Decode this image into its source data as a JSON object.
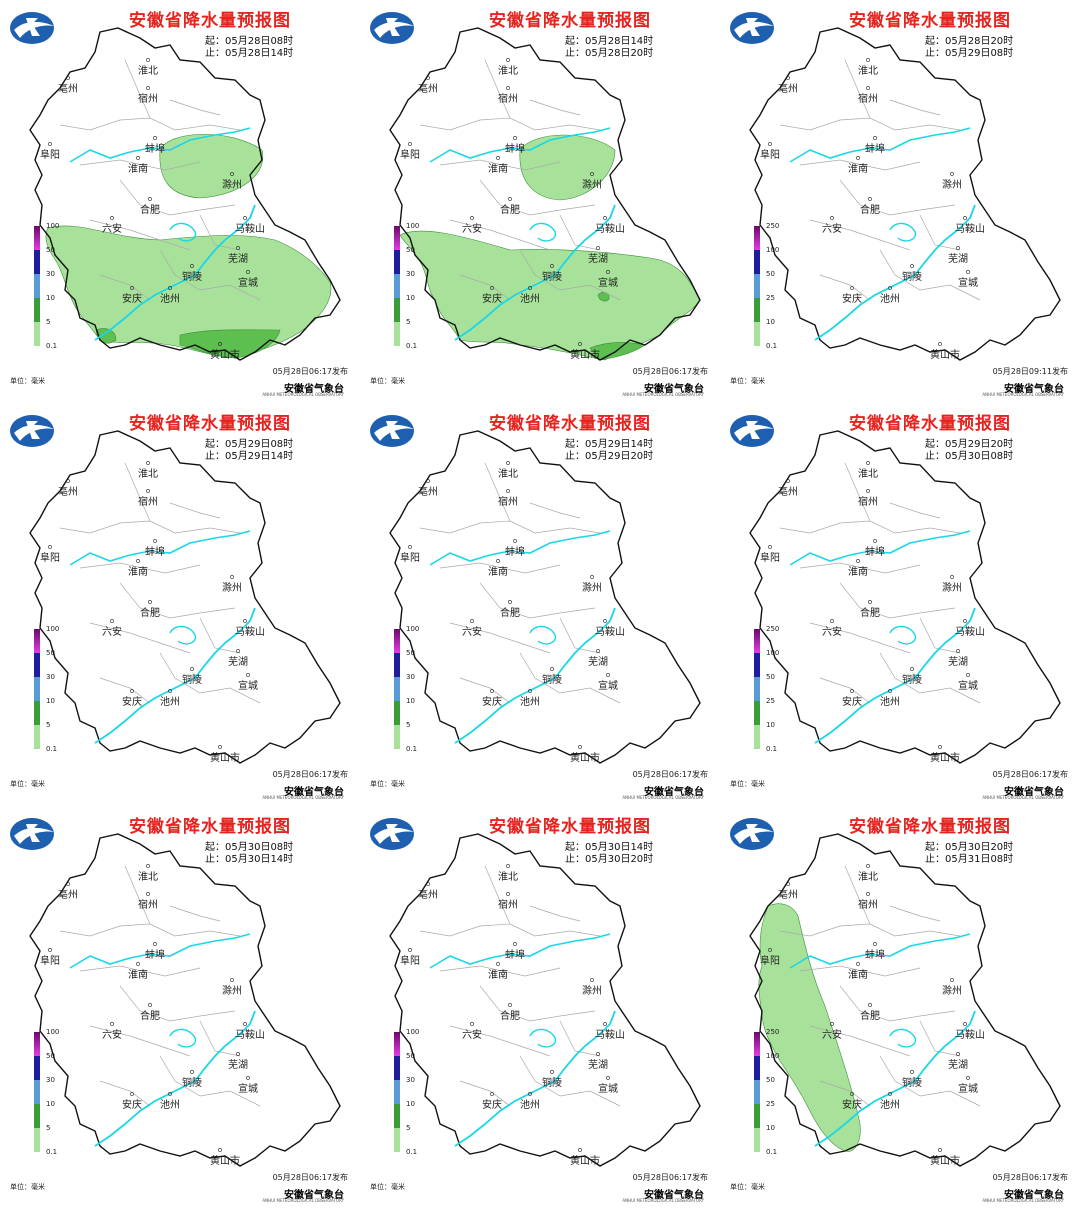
{
  "agency": "安徽省气象台",
  "agency_en": "ANHUI METEOROLOGICAL OBSERVATORY",
  "unit": "单位：毫米",
  "colors": {
    "title": "#e8231f",
    "river": "#19d7e8",
    "rain_light": "#a8e29a",
    "rain_mid": "#5cbf4f",
    "rain_heavy": "#2e8b2e"
  },
  "cities": [
    "淮北",
    "亳州",
    "宿州",
    "阜阳",
    "蚌埠",
    "淮南",
    "滁州",
    "合肥",
    "六安",
    "马鞍山",
    "芜湖",
    "铜陵",
    "宣城",
    "安庆",
    "池州",
    "黄山市"
  ],
  "panels": [
    {
      "title": "安徽省降水量预报图",
      "start": "起：05月28日08时",
      "end": "止：05月28日14时",
      "published": "05月28日06:17发布",
      "legend": [
        "100",
        "50",
        "30",
        "10",
        "5",
        "0.1"
      ],
      "rain": "a"
    },
    {
      "title": "安徽省降水量预报图",
      "start": "起：05月28日14时",
      "end": "止：05月28日20时",
      "published": "05月28日06:17发布",
      "legend": [
        "100",
        "50",
        "30",
        "10",
        "5",
        "0.1"
      ],
      "rain": "b"
    },
    {
      "title": "安徽省降水量预报图",
      "start": "起：05月28日20时",
      "end": "止：05月29日08时",
      "published": "05月28日09:11发布",
      "legend": [
        "250",
        "100",
        "50",
        "25",
        "10",
        "0.1"
      ],
      "rain": "none"
    },
    {
      "title": "安徽省降水量预报图",
      "start": "起：05月29日08时",
      "end": "止：05月29日14时",
      "published": "05月28日06:17发布",
      "legend": [
        "100",
        "50",
        "30",
        "10",
        "5",
        "0.1"
      ],
      "rain": "none"
    },
    {
      "title": "安徽省降水量预报图",
      "start": "起：05月29日14时",
      "end": "止：05月29日20时",
      "published": "05月28日06:17发布",
      "legend": [
        "100",
        "50",
        "30",
        "10",
        "5",
        "0.1"
      ],
      "rain": "none"
    },
    {
      "title": "安徽省降水量预报图",
      "start": "起：05月29日20时",
      "end": "止：05月30日08时",
      "published": "05月28日06:17发布",
      "legend": [
        "250",
        "100",
        "50",
        "25",
        "10",
        "0.1"
      ],
      "rain": "none"
    },
    {
      "title": "安徽省降水量预报图",
      "start": "起：05月30日08时",
      "end": "止：05月30日14时",
      "published": "05月28日06:17发布",
      "legend": [
        "100",
        "50",
        "30",
        "10",
        "5",
        "0.1"
      ],
      "rain": "none"
    },
    {
      "title": "安徽省降水量预报图",
      "start": "起：05月30日14时",
      "end": "止：05月30日20时",
      "published": "05月28日06:17发布",
      "legend": [
        "100",
        "50",
        "30",
        "10",
        "5",
        "0.1"
      ],
      "rain": "none"
    },
    {
      "title": "安徽省降水量预报图",
      "start": "起：05月30日20时",
      "end": "止：05月31日08时",
      "published": "05月28日06:17发布",
      "legend": [
        "250",
        "100",
        "50",
        "25",
        "10",
        "0.1"
      ],
      "rain": "c"
    }
  ]
}
